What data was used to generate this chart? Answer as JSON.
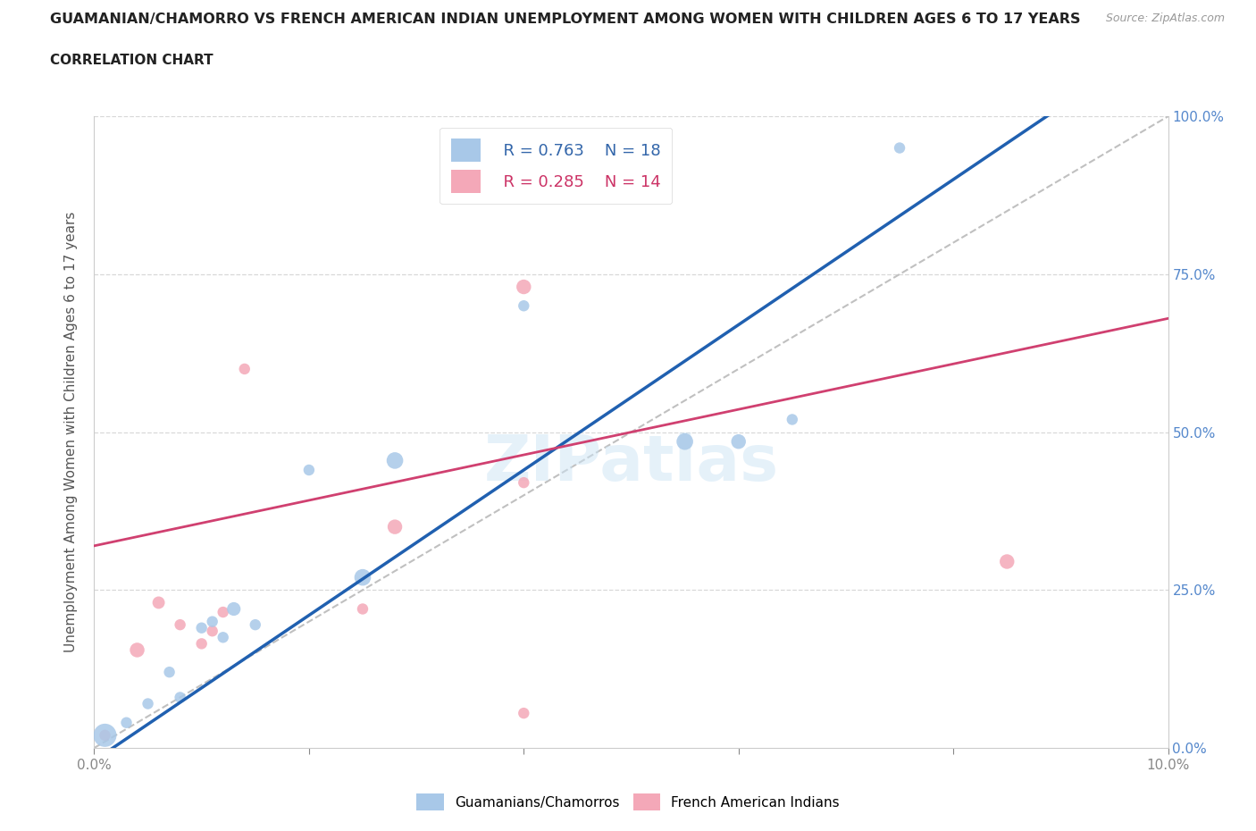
{
  "title": "GUAMANIAN/CHAMORRO VS FRENCH AMERICAN INDIAN UNEMPLOYMENT AMONG WOMEN WITH CHILDREN AGES 6 TO 17 YEARS",
  "subtitle": "CORRELATION CHART",
  "source": "Source: ZipAtlas.com",
  "ylabel": "Unemployment Among Women with Children Ages 6 to 17 years",
  "xlim": [
    0.0,
    0.1
  ],
  "ylim": [
    0.0,
    1.0
  ],
  "xticks": [
    0.0,
    0.02,
    0.04,
    0.06,
    0.08,
    0.1
  ],
  "xticklabels": [
    "0.0%",
    "",
    "",
    "",
    "",
    "10.0%"
  ],
  "yticks": [
    0.0,
    0.25,
    0.5,
    0.75,
    1.0
  ],
  "yticklabels_right": [
    "0.0%",
    "25.0%",
    "50.0%",
    "75.0%",
    "100.0%"
  ],
  "blue_label": "Guamanians/Chamorros",
  "pink_label": "French American Indians",
  "blue_R": "R = 0.763",
  "blue_N": "N = 18",
  "pink_R": "R = 0.285",
  "pink_N": "N = 14",
  "blue_color": "#a8c8e8",
  "pink_color": "#f4a8b8",
  "blue_line_color": "#2060b0",
  "pink_line_color": "#d04070",
  "diagonal_color": "#c0c0c0",
  "background_color": "#ffffff",
  "watermark": "ZIPatlas",
  "grid_color": "#d8d8d8",
  "blue_line_slope": 11.5,
  "blue_line_intercept": -0.02,
  "pink_line_slope": 3.6,
  "pink_line_intercept": 0.32,
  "blue_points_x": [
    0.001,
    0.003,
    0.005,
    0.007,
    0.008,
    0.01,
    0.011,
    0.012,
    0.013,
    0.015,
    0.02,
    0.025,
    0.028,
    0.04,
    0.055,
    0.06,
    0.065,
    0.075
  ],
  "blue_points_y": [
    0.02,
    0.04,
    0.07,
    0.12,
    0.08,
    0.19,
    0.2,
    0.175,
    0.22,
    0.195,
    0.44,
    0.27,
    0.455,
    0.7,
    0.485,
    0.485,
    0.52,
    0.95
  ],
  "blue_sizes": [
    350,
    80,
    80,
    80,
    80,
    80,
    80,
    80,
    120,
    80,
    80,
    180,
    180,
    80,
    180,
    140,
    80,
    80
  ],
  "pink_points_x": [
    0.001,
    0.004,
    0.006,
    0.008,
    0.01,
    0.011,
    0.012,
    0.014,
    0.025,
    0.028,
    0.04,
    0.04,
    0.04,
    0.085
  ],
  "pink_points_y": [
    0.02,
    0.155,
    0.23,
    0.195,
    0.165,
    0.185,
    0.215,
    0.6,
    0.22,
    0.35,
    0.73,
    0.42,
    0.055,
    0.295
  ],
  "pink_sizes": [
    80,
    140,
    100,
    80,
    80,
    80,
    80,
    80,
    80,
    140,
    140,
    80,
    80,
    140
  ]
}
